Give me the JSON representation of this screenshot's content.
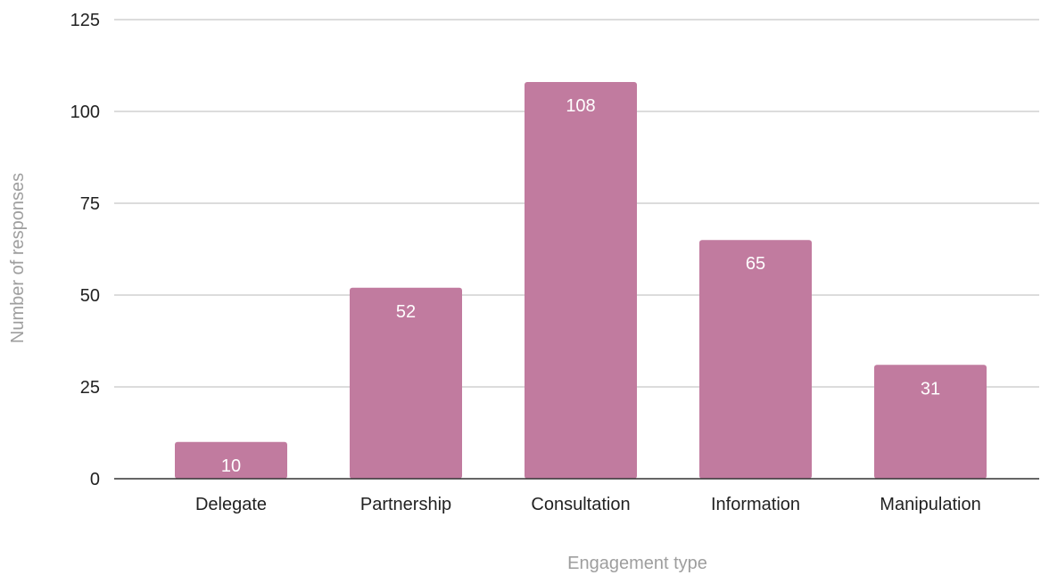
{
  "chart_data": {
    "type": "bar",
    "title": "",
    "categories": [
      "Delegate",
      "Partnership",
      "Consultation",
      "Information",
      "Manipulation"
    ],
    "values": [
      10,
      52,
      108,
      65,
      31
    ],
    "xlabel": "Engagement type",
    "ylabel": "Number of responses",
    "ylim": [
      0,
      125
    ],
    "yticks": [
      0,
      25,
      50,
      75,
      100,
      125
    ],
    "data_labels": true,
    "grid": true,
    "legend": "none",
    "colors": {
      "bar": "#c17b9f",
      "grid": "#d0d0d0",
      "baseline": "#333333",
      "tick_text": "#222222",
      "axis_title": "#9e9e9e",
      "data_label": "#ffffff"
    }
  }
}
